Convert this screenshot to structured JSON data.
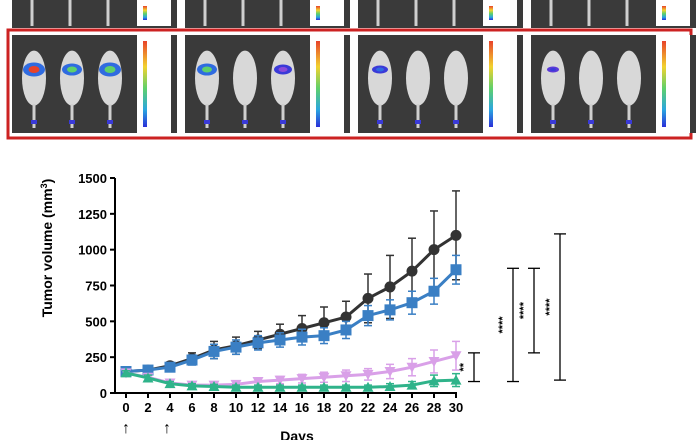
{
  "colors": {
    "highlight_border": "#cc2222",
    "panel_background": "#3a3a3a",
    "series_black": "#333333",
    "series_blue": "#3a7fc4",
    "series_violet": "#d9a0e8",
    "series_green": "#2fb38a"
  },
  "imaging": {
    "top_row_panels": 4,
    "highlighted_row_panels": 4,
    "mice_per_panel": 3
  },
  "chart_data": {
    "type": "line",
    "xlabel": "Days",
    "ylabel": "Tumor volume (mm",
    "ylabel_superscript": "3",
    "ylabel_close": ")",
    "ylim": [
      0,
      1500
    ],
    "xlim": [
      0,
      30
    ],
    "yticks": [
      "0",
      "250",
      "500",
      "750",
      "1000",
      "1250",
      "1500"
    ],
    "xticks": [
      "0",
      "2",
      "4",
      "6",
      "8",
      "10",
      "12",
      "14",
      "16",
      "18",
      "20",
      "22",
      "24",
      "26",
      "28",
      "30"
    ],
    "grid": false,
    "legend": "none",
    "treatment_markers": [
      "↑",
      "↑"
    ],
    "treatment_days": [
      0,
      3
    ],
    "x": [
      0,
      2,
      4,
      6,
      8,
      10,
      12,
      14,
      16,
      18,
      20,
      22,
      24,
      26,
      28,
      30
    ],
    "series": [
      {
        "marker": "circle",
        "color": "#333333",
        "values": [
          150,
          160,
          190,
          240,
          300,
          330,
          370,
          410,
          450,
          490,
          530,
          660,
          740,
          850,
          1000,
          1100
        ],
        "errors": [
          20,
          20,
          25,
          40,
          60,
          60,
          60,
          70,
          90,
          110,
          110,
          170,
          220,
          230,
          270,
          310
        ]
      },
      {
        "marker": "square",
        "color": "#3a7fc4",
        "values": [
          150,
          160,
          180,
          230,
          290,
          320,
          350,
          370,
          390,
          400,
          440,
          540,
          580,
          630,
          710,
          860
        ],
        "errors": [
          20,
          20,
          25,
          35,
          50,
          50,
          50,
          50,
          55,
          55,
          60,
          70,
          70,
          80,
          90,
          100
        ]
      },
      {
        "marker": "triangle-down",
        "color": "#d9a0e8",
        "values": [
          140,
          110,
          70,
          55,
          55,
          60,
          80,
          90,
          100,
          110,
          120,
          130,
          150,
          180,
          220,
          260
        ],
        "errors": [
          20,
          25,
          20,
          20,
          20,
          20,
          25,
          25,
          30,
          35,
          40,
          40,
          50,
          60,
          80,
          100
        ]
      },
      {
        "marker": "triangle-up",
        "color": "#2fb38a",
        "values": [
          140,
          105,
          65,
          50,
          45,
          40,
          40,
          40,
          40,
          40,
          40,
          40,
          45,
          55,
          85,
          90
        ],
        "errors": [
          15,
          20,
          15,
          15,
          15,
          15,
          15,
          15,
          15,
          15,
          15,
          15,
          20,
          25,
          40,
          45
        ]
      }
    ],
    "significance": [
      {
        "label": "**",
        "y_top": 280,
        "y_bottom": 80
      },
      {
        "label": "****",
        "y_top": 870,
        "y_bottom": 80
      },
      {
        "label": "****",
        "y_top": 870,
        "y_bottom": 280
      },
      {
        "label": "****",
        "y_top": 1110,
        "y_bottom": 90
      }
    ]
  }
}
